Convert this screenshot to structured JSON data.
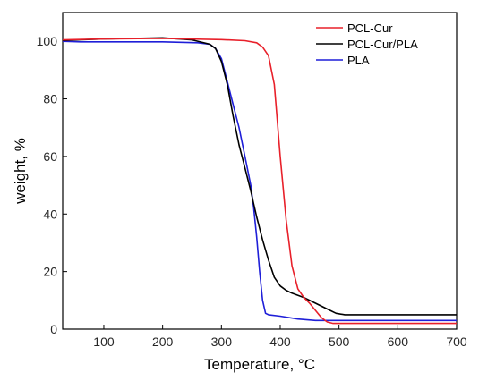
{
  "chart_data": {
    "type": "line",
    "xlabel": "Temperature, °C",
    "ylabel": "weight, %",
    "xlim": [
      30,
      700
    ],
    "ylim": [
      0,
      110
    ],
    "xticks": [
      100,
      200,
      300,
      400,
      500,
      600,
      700
    ],
    "yticks": [
      0,
      20,
      40,
      60,
      80,
      100
    ],
    "legend_position": "top-right",
    "series": [
      {
        "name": "PCL-Cur",
        "color": "#e8202a",
        "points": [
          [
            30,
            100.5
          ],
          [
            100,
            100.8
          ],
          [
            200,
            101.0
          ],
          [
            300,
            100.6
          ],
          [
            340,
            100.2
          ],
          [
            360,
            99.5
          ],
          [
            370,
            98.0
          ],
          [
            380,
            95.0
          ],
          [
            390,
            85.0
          ],
          [
            400,
            60.0
          ],
          [
            410,
            38.0
          ],
          [
            420,
            22.0
          ],
          [
            430,
            14.0
          ],
          [
            440,
            11.0
          ],
          [
            450,
            9.0
          ],
          [
            460,
            6.5
          ],
          [
            470,
            4.0
          ],
          [
            480,
            2.5
          ],
          [
            490,
            2.0
          ],
          [
            500,
            2.0
          ],
          [
            600,
            2.0
          ],
          [
            700,
            2.0
          ]
        ]
      },
      {
        "name": "PCL-Cur/PLA",
        "color": "#000000",
        "points": [
          [
            30,
            100.3
          ],
          [
            100,
            100.8
          ],
          [
            200,
            101.2
          ],
          [
            250,
            100.5
          ],
          [
            280,
            99.0
          ],
          [
            290,
            97.5
          ],
          [
            300,
            93.0
          ],
          [
            310,
            85.0
          ],
          [
            320,
            74.0
          ],
          [
            330,
            64.0
          ],
          [
            340,
            56.0
          ],
          [
            350,
            48.0
          ],
          [
            360,
            39.0
          ],
          [
            370,
            31.0
          ],
          [
            380,
            24.0
          ],
          [
            390,
            18.0
          ],
          [
            400,
            15.0
          ],
          [
            410,
            13.5
          ],
          [
            420,
            12.5
          ],
          [
            440,
            11.0
          ],
          [
            460,
            9.0
          ],
          [
            480,
            7.0
          ],
          [
            495,
            5.5
          ],
          [
            510,
            5.0
          ],
          [
            600,
            5.0
          ],
          [
            700,
            5.0
          ]
        ]
      },
      {
        "name": "PLA",
        "color": "#1f1fd8",
        "points": [
          [
            30,
            100.0
          ],
          [
            60,
            99.8
          ],
          [
            100,
            99.8
          ],
          [
            200,
            99.8
          ],
          [
            260,
            99.5
          ],
          [
            280,
            99.0
          ],
          [
            290,
            97.5
          ],
          [
            300,
            94.0
          ],
          [
            310,
            86.0
          ],
          [
            320,
            78.0
          ],
          [
            330,
            70.0
          ],
          [
            340,
            60.0
          ],
          [
            350,
            50.0
          ],
          [
            355,
            42.0
          ],
          [
            360,
            32.0
          ],
          [
            365,
            20.0
          ],
          [
            370,
            10.0
          ],
          [
            375,
            5.5
          ],
          [
            380,
            5.0
          ],
          [
            400,
            4.5
          ],
          [
            430,
            3.5
          ],
          [
            460,
            3.0
          ],
          [
            500,
            3.0
          ],
          [
            600,
            3.0
          ],
          [
            700,
            3.0
          ]
        ]
      }
    ]
  }
}
